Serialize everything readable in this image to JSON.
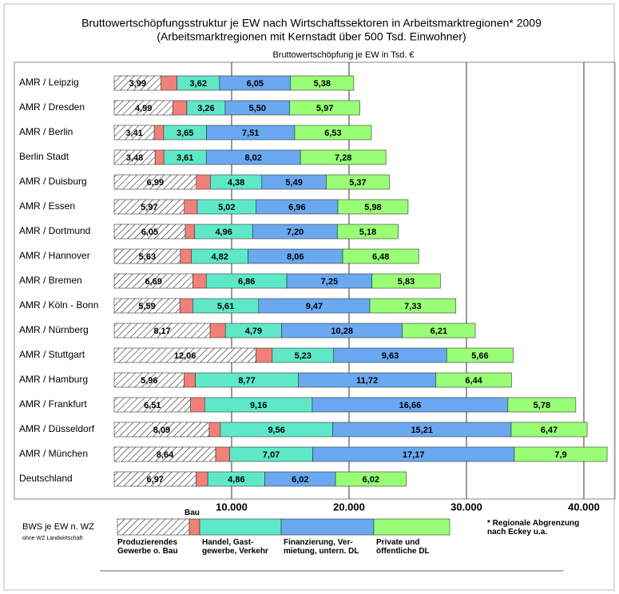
{
  "chart_data": {
    "type": "bar",
    "orientation": "horizontal",
    "stacked": true,
    "title": "Bruttowertschöpfungsstruktur  je EW nach Wirtschaftssektoren in Arbeitsmarktregionen* 2009",
    "subtitle": "(Arbeitsmarktregionen mit Kernstadt über 500 Tsd. Einwohner)",
    "x_label": "Bruttowertschöpfung je EW in Tsd. €",
    "legend_title": "BWS je EW n. WZ",
    "legend_note": "ohne WZ Landwirtschaft",
    "footnote": "* Regionale Abgrenzung nach Eckey u.a.",
    "categories": [
      "AMR / Leipzig",
      "AMR / Dresden",
      "AMR / Berlin",
      "Berlin Stadt",
      "AMR / Duisburg",
      "AMR / Essen",
      "AMR / Dortmund",
      "AMR / Hannover",
      "AMR / Bremen",
      "AMR / Köln - Bonn",
      "AMR / Nürnberg",
      "AMR / Stuttgart",
      "AMR / Hamburg",
      "AMR / Frankfurt",
      "AMR / Düsseldorf",
      "AMR / München",
      "Deutschland"
    ],
    "series": [
      {
        "name": "Produzierendes Gewerbe o. Bau",
        "color": "hatch",
        "values": [
          3990,
          4990,
          3410,
          3480,
          6990,
          5970,
          6050,
          5630,
          6690,
          5590,
          8170,
          12060,
          5960,
          6510,
          8090,
          8640,
          6970
        ],
        "value_labels": [
          "3,99",
          "4,99",
          "3,41",
          "3,48",
          "6,99",
          "5,97",
          "6,05",
          "5,63",
          "6,69",
          "5,59",
          "8,17",
          "12,06",
          "5,96",
          "6,51",
          "8,09",
          "8,64",
          "6,97"
        ]
      },
      {
        "name": "Bau",
        "color": "#f08078",
        "values": [
          1360,
          1200,
          800,
          750,
          1200,
          1100,
          800,
          950,
          1150,
          1100,
          1300,
          1400,
          950,
          1200,
          950,
          1200,
          1000
        ]
      },
      {
        "name": "Handel, Gast-gewerbe, Verkehr",
        "color": "#5fe8c8",
        "values": [
          3620,
          3260,
          3650,
          3610,
          4380,
          5020,
          4960,
          4820,
          6860,
          5610,
          4790,
          5230,
          8770,
          9160,
          9560,
          7070,
          4860
        ],
        "value_labels": [
          "3,62",
          "3,26",
          "3,65",
          "3,61",
          "4,38",
          "5,02",
          "4,96",
          "4,82",
          "6,86",
          "5,61",
          "4,79",
          "5,23",
          "8,77",
          "9,16",
          "9,56",
          "7,07",
          "4,86"
        ]
      },
      {
        "name": "Finanzierung, Ver-mietung, untern. DL",
        "color": "#6aa8f0",
        "values": [
          6050,
          5500,
          7510,
          8020,
          5490,
          6960,
          7200,
          8060,
          7250,
          9470,
          10280,
          9630,
          11720,
          16660,
          15210,
          17170,
          6020
        ],
        "value_labels": [
          "6,05",
          "5,50",
          "7,51",
          "8,02",
          "5,49",
          "6,96",
          "7,20",
          "8,06",
          "7,25",
          "9,47",
          "10,28",
          "9,63",
          "11,72",
          "16,66",
          "15,21",
          "17,17",
          "6,02"
        ]
      },
      {
        "name": "Private und öffentliche DL",
        "color": "#99ff77",
        "values": [
          5380,
          5970,
          6530,
          7280,
          5370,
          5980,
          5180,
          6480,
          5830,
          7330,
          6210,
          5660,
          6440,
          5780,
          6470,
          7900,
          6020
        ],
        "value_labels": [
          "5,38",
          "5,97",
          "6,53",
          "7,28",
          "5,37",
          "5,98",
          "5,18",
          "6,48",
          "5,83",
          "7,33",
          "6,21",
          "5,66",
          "6,44",
          "5,78",
          "6,47",
          "7,9",
          "6,02"
        ]
      }
    ],
    "xlim": [
      0,
      42000
    ],
    "xticks": [
      {
        "value": 10000,
        "label": "10.000"
      },
      {
        "value": 20000,
        "label": "20.000"
      },
      {
        "value": 30000,
        "label": "30.000"
      },
      {
        "value": 40000,
        "label": "40.000"
      }
    ],
    "grid": true
  }
}
